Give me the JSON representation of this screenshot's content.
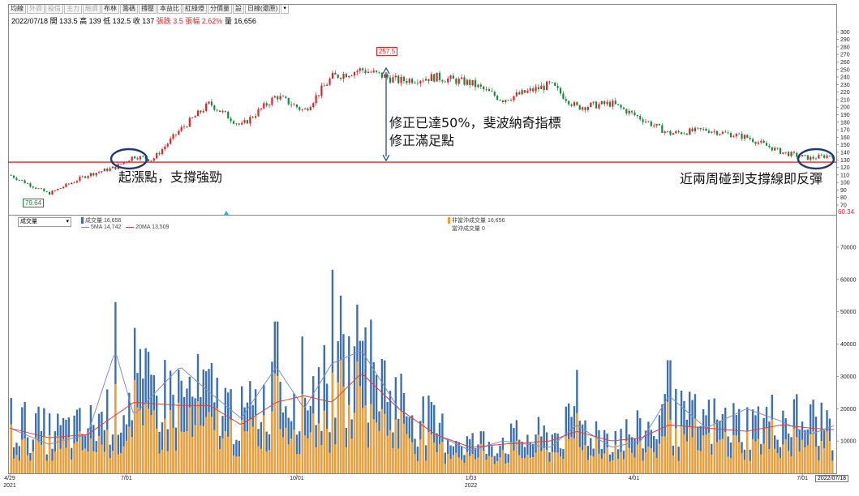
{
  "toolbar": {
    "buttons": [
      "均線",
      "外資",
      "投信",
      "主力",
      "融資",
      "布林",
      "籌碼",
      "撐壓",
      "本益比",
      "紅綠燈",
      "分價量",
      "設",
      "日線(還原)"
    ],
    "dim": [
      1,
      2,
      3,
      4
    ]
  },
  "info": {
    "date": "2022/07/18",
    "open": "開 133.5",
    "high": "高 139",
    "low": "低 132.5",
    "close": "收 137",
    "change": "張跌 3.5",
    "pct": "張幅 2.62%",
    "volume": "量 16,656"
  },
  "annotations": {
    "left": "起漲點，支撐強勁",
    "mid_line1": "修正已達50%，斐波納奇指標",
    "mid_line2": "修正滿足點",
    "right": "近兩周碰到支撐線即反彈"
  },
  "volume_panel": {
    "selector": "成交量",
    "legend_vol": "成交量 16,656",
    "legend_5ma": "5MA 14,742",
    "legend_20ma": "20MA 13,509",
    "legend_nonday": "非當沖成交量 16,656",
    "legend_day": "當沖成交量 0"
  },
  "x_axis": {
    "labels": [
      {
        "t": "4/29",
        "sub": "2021"
      },
      {
        "t": "7/01",
        "sub": ""
      },
      {
        "t": "10/01",
        "sub": ""
      },
      {
        "t": "1/03",
        "sub": "2022"
      },
      {
        "t": "4/01",
        "sub": ""
      },
      {
        "t": "7/01",
        "sub": ""
      }
    ],
    "last_date": "2022/07/18"
  },
  "colors": {
    "up": "#e0242c",
    "down": "#1a8a3a",
    "vol_blue": "#3b6fad",
    "vol_orange": "#f0a030",
    "ma5": "#7a8fd6",
    "ma20": "#e04040",
    "support": "#e0242c",
    "circle": "#1f3c6e"
  },
  "chart_data": [
    {
      "type": "candlestick",
      "title": "",
      "ylim": [
        60.34,
        310
      ],
      "y_ticks": [
        70,
        80,
        90,
        100,
        110,
        120,
        130,
        140,
        150,
        160,
        170,
        180,
        190,
        200,
        210,
        220,
        230,
        240,
        250,
        260,
        270,
        280,
        290,
        300
      ],
      "current_marker": "60.34",
      "high_label": "257.5",
      "low_label": "79.64",
      "support_level": 127,
      "x": [
        "4/29",
        "7/01",
        "10/01",
        "1/03",
        "4/01",
        "7/01",
        "2022/07/18"
      ],
      "close_path": [
        {
          "x": "2021/04/29",
          "y": 110
        },
        {
          "x": "2021/05/20",
          "y": 85
        },
        {
          "x": "2021/06/10",
          "y": 110
        },
        {
          "x": "2021/06/25",
          "y": 120
        },
        {
          "x": "2021/07/05",
          "y": 135
        },
        {
          "x": "2021/07/15",
          "y": 130
        },
        {
          "x": "2021/07/30",
          "y": 170
        },
        {
          "x": "2021/08/15",
          "y": 205
        },
        {
          "x": "2021/09/01",
          "y": 175
        },
        {
          "x": "2021/09/20",
          "y": 215
        },
        {
          "x": "2021/10/05",
          "y": 195
        },
        {
          "x": "2021/10/20",
          "y": 240
        },
        {
          "x": "2021/11/05",
          "y": 250
        },
        {
          "x": "2021/11/25",
          "y": 235
        },
        {
          "x": "2021/12/15",
          "y": 240
        },
        {
          "x": "2022/01/03",
          "y": 232
        },
        {
          "x": "2022/01/20",
          "y": 210
        },
        {
          "x": "2022/02/15",
          "y": 230
        },
        {
          "x": "2022/03/01",
          "y": 200
        },
        {
          "x": "2022/03/20",
          "y": 205
        },
        {
          "x": "2022/04/05",
          "y": 185
        },
        {
          "x": "2022/04/20",
          "y": 165
        },
        {
          "x": "2022/05/10",
          "y": 170
        },
        {
          "x": "2022/06/01",
          "y": 160
        },
        {
          "x": "2022/06/20",
          "y": 140
        },
        {
          "x": "2022/07/05",
          "y": 132
        },
        {
          "x": "2022/07/18",
          "y": 137
        }
      ]
    },
    {
      "type": "bar",
      "title": "",
      "ylim": [
        0,
        75000
      ],
      "y_ticks": [
        10000,
        20000,
        30000,
        40000,
        50000,
        60000,
        70000
      ],
      "series": [
        {
          "name": "成交量",
          "last": 16656
        },
        {
          "name": "非當沖成交量",
          "last": 16656
        },
        {
          "name": "當沖成交量",
          "last": 0
        },
        {
          "name": "5MA",
          "last": 14742
        },
        {
          "name": "20MA",
          "last": 13509
        }
      ],
      "profile_5ma": [
        {
          "x": "2021/04/29",
          "y": 14000
        },
        {
          "x": "2021/05/20",
          "y": 9000
        },
        {
          "x": "2021/06/10",
          "y": 12000
        },
        {
          "x": "2021/06/25",
          "y": 38000
        },
        {
          "x": "2021/07/05",
          "y": 18000
        },
        {
          "x": "2021/07/30",
          "y": 33000
        },
        {
          "x": "2021/08/15",
          "y": 25000
        },
        {
          "x": "2021/09/01",
          "y": 17000
        },
        {
          "x": "2021/09/20",
          "y": 33000
        },
        {
          "x": "2021/10/05",
          "y": 20000
        },
        {
          "x": "2021/10/20",
          "y": 34000
        },
        {
          "x": "2021/11/05",
          "y": 38000
        },
        {
          "x": "2021/11/25",
          "y": 20000
        },
        {
          "x": "2021/12/15",
          "y": 12000
        },
        {
          "x": "2022/01/03",
          "y": 7000
        },
        {
          "x": "2022/01/20",
          "y": 10000
        },
        {
          "x": "2022/02/15",
          "y": 8000
        },
        {
          "x": "2022/03/01",
          "y": 15000
        },
        {
          "x": "2022/03/20",
          "y": 8000
        },
        {
          "x": "2022/04/05",
          "y": 10000
        },
        {
          "x": "2022/04/20",
          "y": 24000
        },
        {
          "x": "2022/05/10",
          "y": 14000
        },
        {
          "x": "2022/06/01",
          "y": 20000
        },
        {
          "x": "2022/06/20",
          "y": 16000
        },
        {
          "x": "2022/07/05",
          "y": 12000
        },
        {
          "x": "2022/07/18",
          "y": 14742
        }
      ],
      "profile_20ma": [
        {
          "x": "2021/04/29",
          "y": 14000
        },
        {
          "x": "2021/05/20",
          "y": 11000
        },
        {
          "x": "2021/06/10",
          "y": 12000
        },
        {
          "x": "2021/06/25",
          "y": 18000
        },
        {
          "x": "2021/07/05",
          "y": 22000
        },
        {
          "x": "2021/07/30",
          "y": 21000
        },
        {
          "x": "2021/08/15",
          "y": 21000
        },
        {
          "x": "2021/09/01",
          "y": 15000
        },
        {
          "x": "2021/09/20",
          "y": 22000
        },
        {
          "x": "2021/10/05",
          "y": 24000
        },
        {
          "x": "2021/10/20",
          "y": 22000
        },
        {
          "x": "2021/11/05",
          "y": 31000
        },
        {
          "x": "2021/11/25",
          "y": 20000
        },
        {
          "x": "2021/12/15",
          "y": 12000
        },
        {
          "x": "2022/01/03",
          "y": 8000
        },
        {
          "x": "2022/01/20",
          "y": 9000
        },
        {
          "x": "2022/02/15",
          "y": 10000
        },
        {
          "x": "2022/03/01",
          "y": 13000
        },
        {
          "x": "2022/03/20",
          "y": 10000
        },
        {
          "x": "2022/04/05",
          "y": 11000
        },
        {
          "x": "2022/04/20",
          "y": 15000
        },
        {
          "x": "2022/05/10",
          "y": 14000
        },
        {
          "x": "2022/06/01",
          "y": 13000
        },
        {
          "x": "2022/06/20",
          "y": 15000
        },
        {
          "x": "2022/07/05",
          "y": 14000
        },
        {
          "x": "2022/07/18",
          "y": 13509
        }
      ],
      "spikes": [
        {
          "x": "2021/06/25",
          "y": 53000
        },
        {
          "x": "2021/07/05",
          "y": 45000
        },
        {
          "x": "2021/10/20",
          "y": 63000
        },
        {
          "x": "2021/10/25",
          "y": 55000
        },
        {
          "x": "2021/11/05",
          "y": 41000
        },
        {
          "x": "2022/04/20",
          "y": 35000
        },
        {
          "x": "2022/03/01",
          "y": 32000
        },
        {
          "x": "2021/09/20",
          "y": 47000
        }
      ]
    }
  ]
}
